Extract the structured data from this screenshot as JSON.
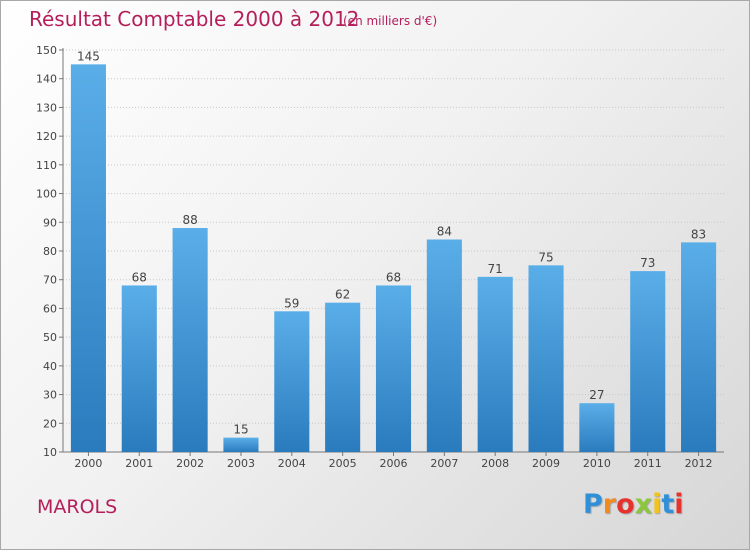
{
  "title": "Résultat Comptable 2000 à 2012",
  "subtitle": "(en milliers d'€)",
  "location": "MAROLS",
  "logo": {
    "letters": [
      "P",
      "r",
      "o",
      "x",
      "i",
      "t",
      "i"
    ],
    "colors": [
      "#2f8fd8",
      "#f28a1e",
      "#e6312d",
      "#8cc63f",
      "#f2c21e",
      "#2f8fd8",
      "#e6312d"
    ]
  },
  "colors": {
    "bar_top": "#5aaee8",
    "bar_bottom": "#2a7bbd",
    "title": "#b41f5a",
    "grid": "#c8c8c8"
  },
  "chart_data": {
    "type": "bar",
    "title": "Résultat Comptable 2000 à 2012",
    "subtitle": "(en milliers d'€)",
    "categories": [
      "2000",
      "2001",
      "2002",
      "2003",
      "2004",
      "2005",
      "2006",
      "2007",
      "2008",
      "2009",
      "2010",
      "2011",
      "2012"
    ],
    "values": [
      145,
      68,
      88,
      15,
      59,
      62,
      68,
      84,
      71,
      75,
      27,
      73,
      83
    ],
    "ylim": [
      10,
      150
    ],
    "yticks": [
      10,
      20,
      30,
      40,
      50,
      60,
      70,
      80,
      90,
      100,
      110,
      120,
      130,
      140,
      150
    ],
    "grid": true,
    "data_labels": true
  }
}
